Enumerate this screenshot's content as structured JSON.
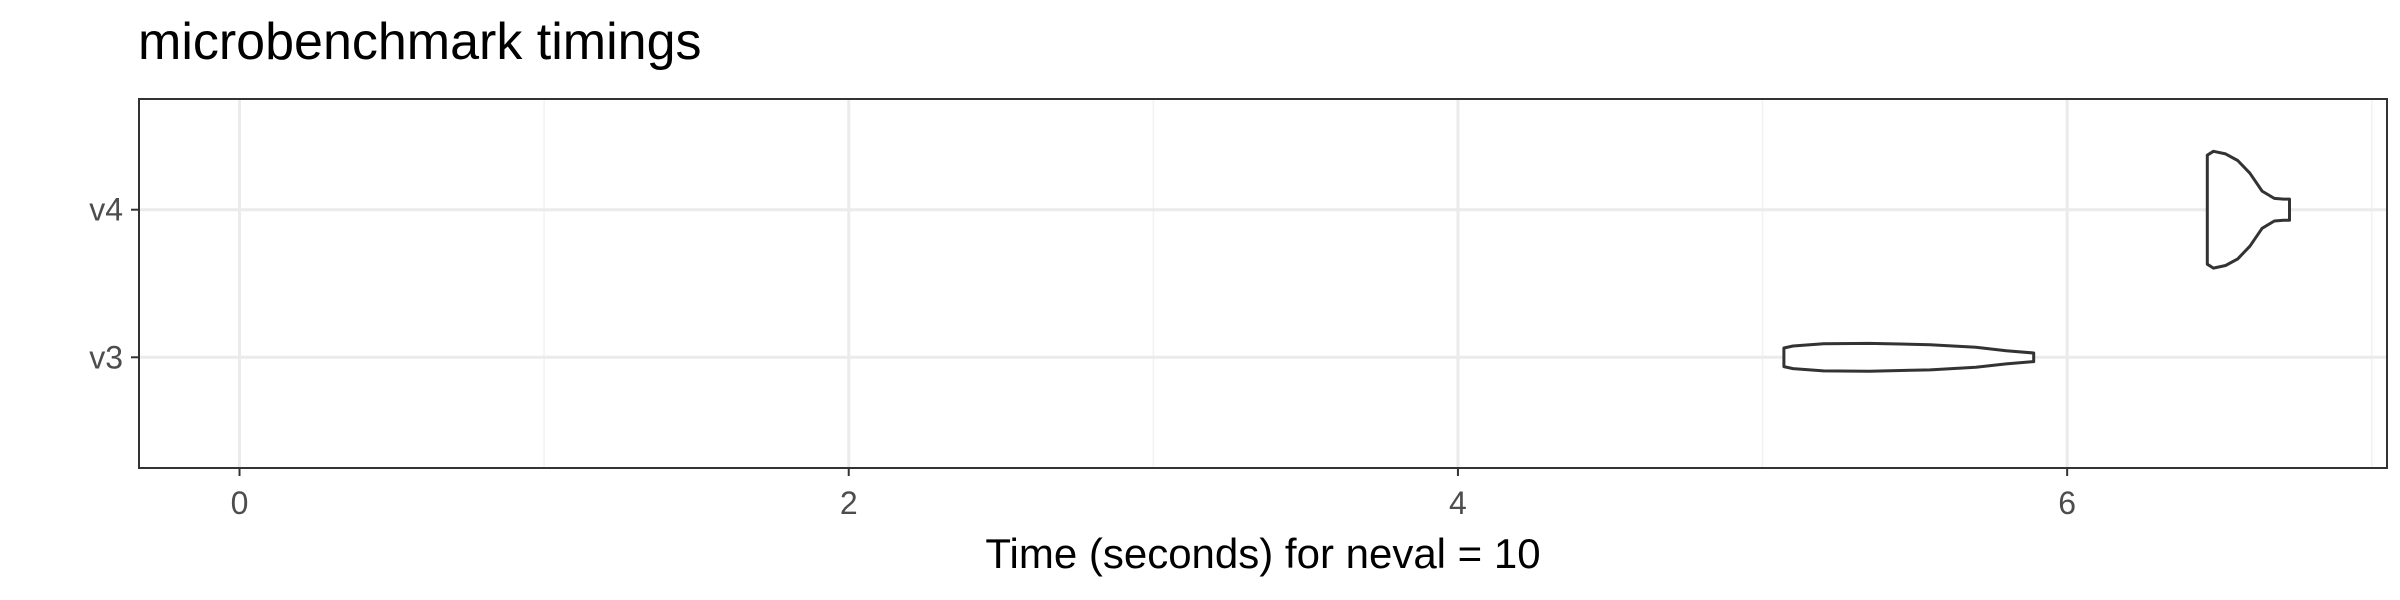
{
  "chart_data": {
    "type": "violin",
    "title": "microbenchmark timings",
    "xlabel": "Time (seconds) for neval = 10",
    "ylabel": "",
    "xlim": [
      -0.33,
      7.05
    ],
    "x_ticks": [
      0,
      2,
      4,
      6
    ],
    "x_minor_ticks": [
      1,
      3,
      5,
      7
    ],
    "categories": [
      "v3",
      "v4"
    ],
    "grid": true,
    "series": [
      {
        "category": "v3",
        "min": 5.07,
        "max": 5.89,
        "profile": [
          {
            "x": 5.07,
            "w": 0.14
          },
          {
            "x": 5.1,
            "w": 0.17
          },
          {
            "x": 5.2,
            "w": 0.205
          },
          {
            "x": 5.35,
            "w": 0.21
          },
          {
            "x": 5.55,
            "w": 0.19
          },
          {
            "x": 5.7,
            "w": 0.15
          },
          {
            "x": 5.8,
            "w": 0.1
          },
          {
            "x": 5.89,
            "w": 0.065
          }
        ]
      },
      {
        "category": "v4",
        "min": 6.46,
        "max": 6.73,
        "profile": [
          {
            "x": 6.46,
            "w": 0.82
          },
          {
            "x": 6.48,
            "w": 0.88
          },
          {
            "x": 6.52,
            "w": 0.84
          },
          {
            "x": 6.56,
            "w": 0.74
          },
          {
            "x": 6.6,
            "w": 0.55
          },
          {
            "x": 6.64,
            "w": 0.28
          },
          {
            "x": 6.68,
            "w": 0.17
          },
          {
            "x": 6.71,
            "w": 0.16
          },
          {
            "x": 6.73,
            "w": 0.16
          }
        ]
      }
    ]
  }
}
